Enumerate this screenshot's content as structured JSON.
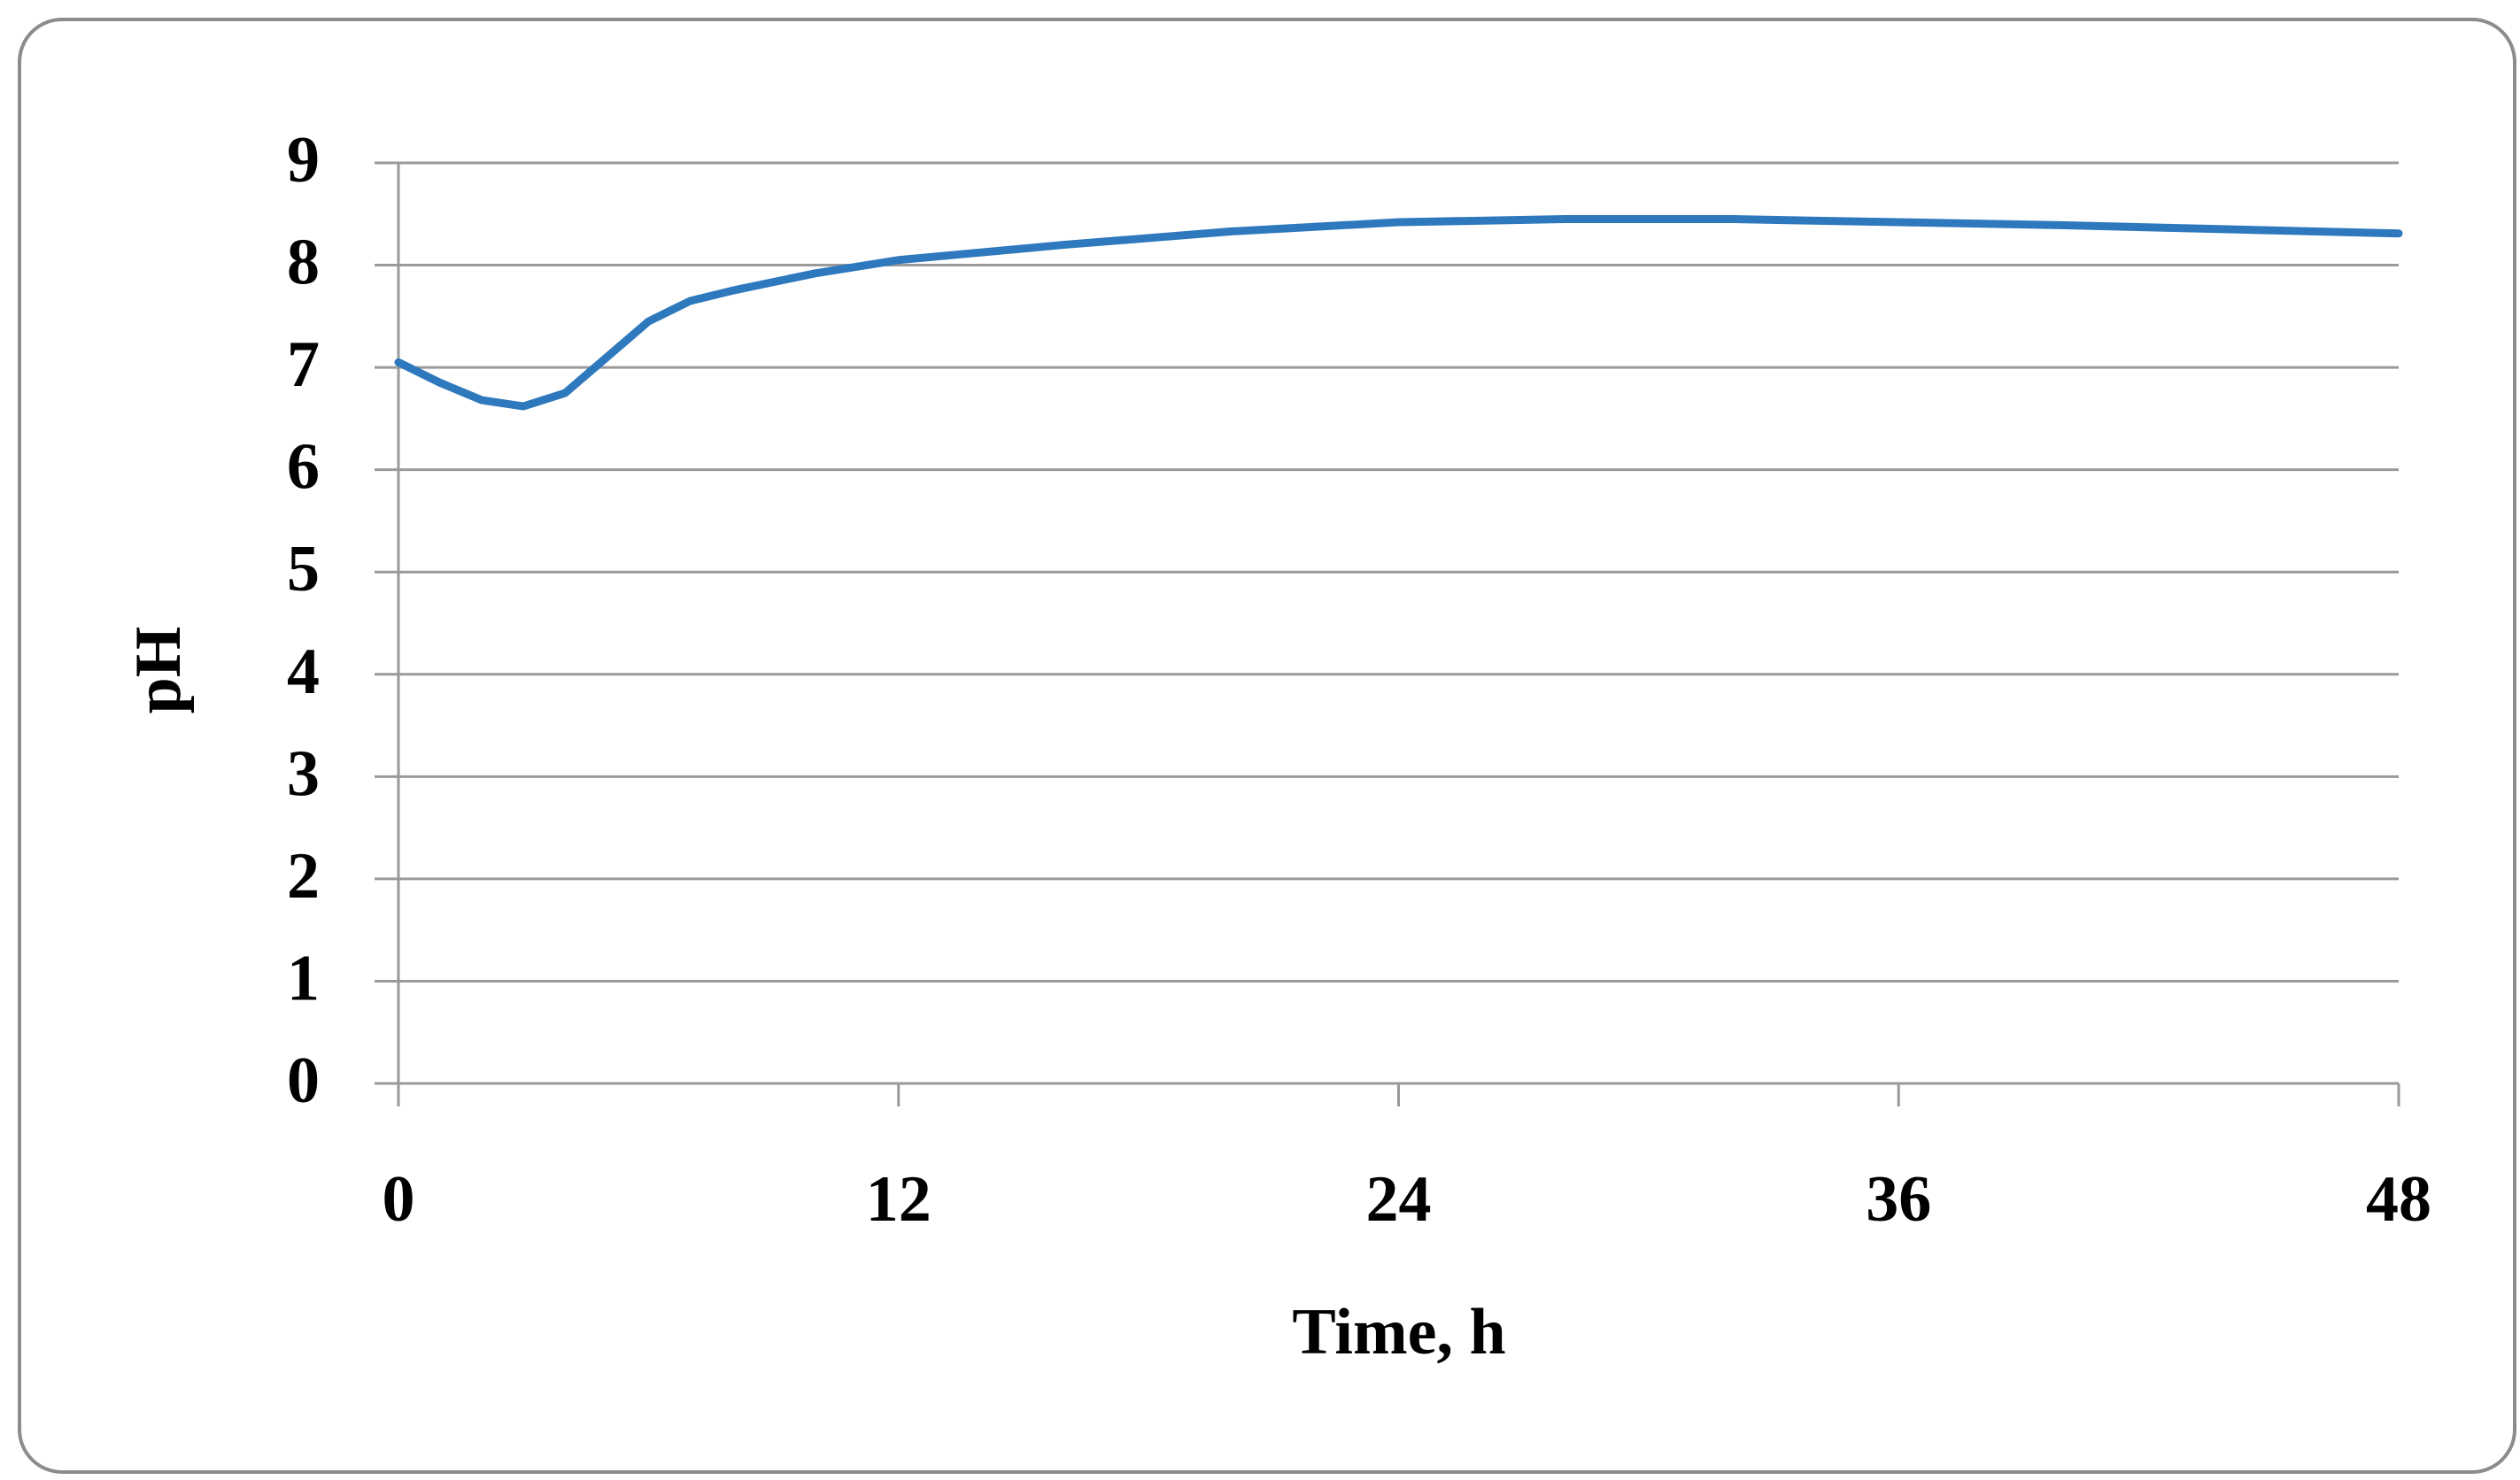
{
  "chart_data": {
    "type": "line",
    "x_label": "Time, h",
    "y_label": "pH",
    "x": [
      0,
      1,
      2,
      3,
      4,
      5,
      6,
      7,
      8,
      10,
      12,
      16,
      20,
      24,
      28,
      32,
      36,
      40,
      44,
      48
    ],
    "series": [
      {
        "color": "#2e78bd",
        "values": [
          7.05,
          6.85,
          6.68,
          6.62,
          6.75,
          7.1,
          7.45,
          7.65,
          7.75,
          7.92,
          8.05,
          8.2,
          8.33,
          8.42,
          8.45,
          8.45,
          8.42,
          8.39,
          8.35,
          8.31
        ]
      }
    ],
    "xlim": [
      0,
      48
    ],
    "xticks": [
      0,
      12,
      24,
      36,
      48
    ],
    "ylim": [
      0,
      9
    ],
    "yticks": [
      0,
      1,
      2,
      3,
      4,
      5,
      6,
      7,
      8,
      9
    ],
    "grid": true
  }
}
